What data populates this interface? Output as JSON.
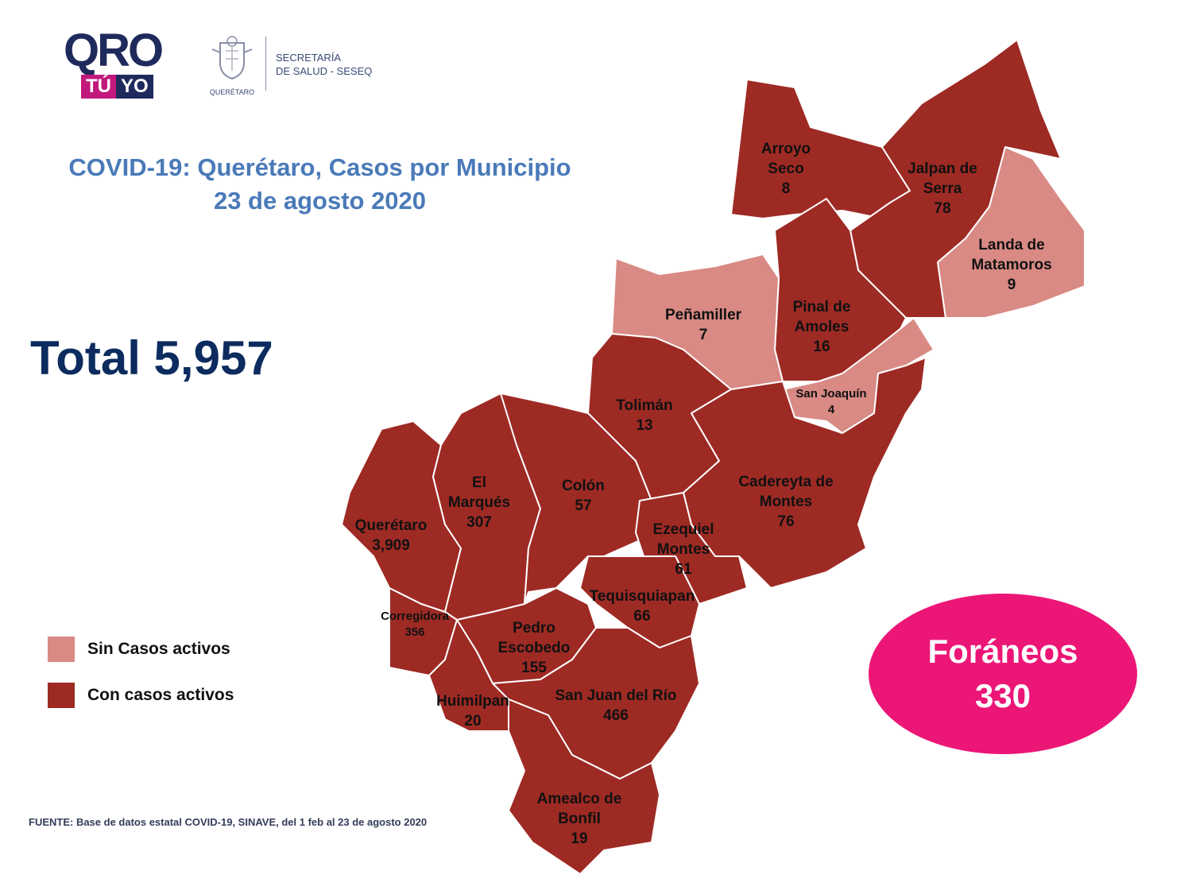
{
  "header": {
    "logo_text": "QRO",
    "logo_tu": "TÚ",
    "logo_yo": "YO",
    "seal_caption": "QUERÉTARO",
    "secretaria_line1": "SECRETARÍA",
    "secretaria_line2": "DE SALUD - SESEQ"
  },
  "title": {
    "line1": "COVID-19: Querétaro, Casos por Municipio",
    "line2": "23 de agosto 2020"
  },
  "total": {
    "label": "Total",
    "value": "5,957"
  },
  "legend": [
    {
      "label": "Sin Casos activos",
      "color": "#d98a84"
    },
    {
      "label": "Con casos activos",
      "color": "#9e2a24"
    }
  ],
  "foraneos": {
    "label": "Foráneos",
    "value": "330",
    "color": "#ec1677"
  },
  "source": "FUENTE: Base de datos estatal COVID-19, SINAVE, del 1 feb al 23 de agosto 2020",
  "colors": {
    "active": "#9e2a24",
    "no_active": "#d98a84",
    "title": "#4a7ab8",
    "total": "#0c2b5e"
  },
  "municipalities": [
    {
      "name": "Arroyo Seco",
      "cases": "8",
      "status": "active"
    },
    {
      "name": "Jalpan de Serra",
      "cases": "78",
      "status": "active"
    },
    {
      "name": "Landa de Matamoros",
      "cases": "9",
      "status": "no_active"
    },
    {
      "name": "Pinal de Amoles",
      "cases": "16",
      "status": "active"
    },
    {
      "name": "Peñamiller",
      "cases": "7",
      "status": "no_active"
    },
    {
      "name": "San Joaquín",
      "cases": "4",
      "status": "no_active"
    },
    {
      "name": "Tolimán",
      "cases": "13",
      "status": "active"
    },
    {
      "name": "Cadereyta de Montes",
      "cases": "76",
      "status": "active"
    },
    {
      "name": "Querétaro",
      "cases": "3,909",
      "status": "active"
    },
    {
      "name": "El Marqués",
      "cases": "307",
      "status": "active"
    },
    {
      "name": "Colón",
      "cases": "57",
      "status": "active"
    },
    {
      "name": "Ezequiel Montes",
      "cases": "61",
      "status": "active"
    },
    {
      "name": "Tequisquiapan",
      "cases": "66",
      "status": "active"
    },
    {
      "name": "Corregidora",
      "cases": "356",
      "status": "active"
    },
    {
      "name": "Pedro Escobedo",
      "cases": "155",
      "status": "active"
    },
    {
      "name": "Huimilpan",
      "cases": "20",
      "status": "active"
    },
    {
      "name": "San Juan del Río",
      "cases": "466",
      "status": "active"
    },
    {
      "name": "Amealco de Bonfil",
      "cases": "19",
      "status": "active"
    }
  ]
}
